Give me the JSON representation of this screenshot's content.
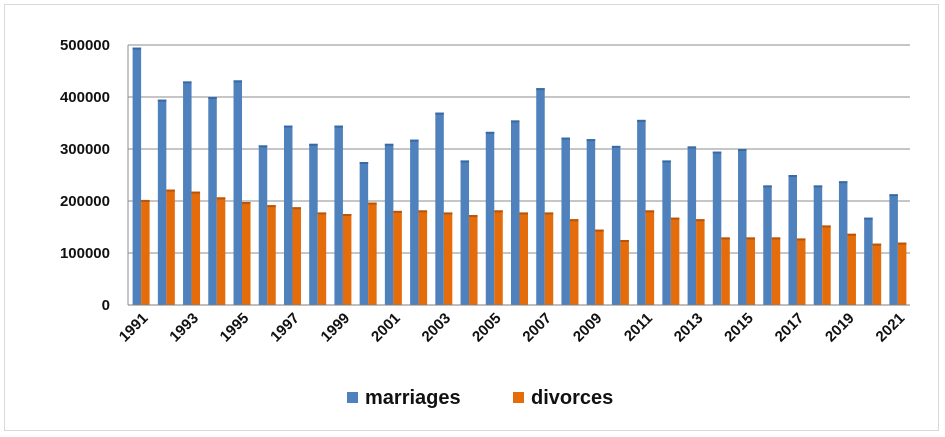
{
  "chart_data": {
    "type": "bar",
    "title": "",
    "xlabel": "",
    "ylabel": "",
    "ylim": [
      0,
      500000
    ],
    "yticks": [
      "0",
      "100000",
      "200000",
      "300000",
      "400000",
      "500000"
    ],
    "categories": [
      "1991",
      "1992",
      "1993",
      "1994",
      "1995",
      "1996",
      "1997",
      "1998",
      "1999",
      "2000",
      "2001",
      "2002",
      "2003",
      "2004",
      "2005",
      "2006",
      "2007",
      "2008",
      "2009",
      "2010",
      "2011",
      "2012",
      "2013",
      "2014",
      "2015",
      "2016",
      "2017",
      "2018",
      "2019",
      "2020",
      "2021"
    ],
    "xtick_labels": [
      "1991",
      "1993",
      "1995",
      "1997",
      "1999",
      "2001",
      "2003",
      "2005",
      "2007",
      "2009",
      "2011",
      "2013",
      "2015",
      "2017",
      "2019",
      "2021"
    ],
    "grid": "horizontal",
    "legend_position": "bottom",
    "series": [
      {
        "name": "marriages",
        "color": "#4f81bd",
        "values": [
          495000,
          395000,
          430000,
          400000,
          432000,
          307000,
          345000,
          310000,
          345000,
          275000,
          310000,
          318000,
          370000,
          278000,
          333000,
          355000,
          417000,
          322000,
          319000,
          306000,
          356000,
          278000,
          305000,
          295000,
          300000,
          230000,
          250000,
          230000,
          238000,
          168000,
          213000
        ]
      },
      {
        "name": "divorces",
        "color": "#e46c0a",
        "values": [
          202000,
          222000,
          218000,
          207000,
          198000,
          192000,
          188000,
          178000,
          175000,
          197000,
          181000,
          182000,
          178000,
          173000,
          182000,
          178000,
          178000,
          165000,
          145000,
          125000,
          182000,
          168000,
          165000,
          130000,
          130000,
          130000,
          128000,
          153000,
          137000,
          118000,
          120000
        ]
      }
    ]
  }
}
